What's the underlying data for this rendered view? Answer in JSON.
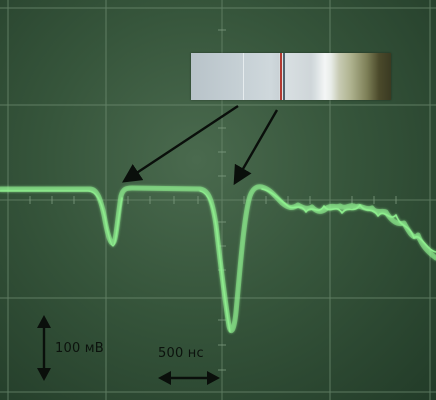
{
  "labels": {
    "voltage_scale": "100 мВ",
    "time_scale": "500 нс"
  },
  "colors": {
    "trace": "#8ff08f",
    "grid": "#6f8d72",
    "arrow": "#0a0f0b"
  },
  "icons": {
    "vertical_scale": "double-arrow-vertical-icon",
    "horizontal_scale": "double-arrow-horizontal-icon"
  }
}
